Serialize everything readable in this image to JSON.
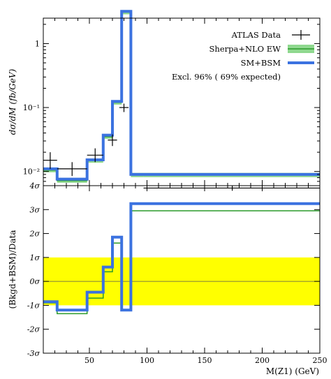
{
  "chart_data": [
    {
      "type": "line",
      "panel": "main",
      "ylabel": "dσ/dM (fb/GeV)",
      "yscale": "log",
      "xlim": [
        10,
        250
      ],
      "ylim": [
        0.006,
        2.5
      ],
      "y_ticks": [
        {
          "value": 0.01,
          "label": "10⁻²"
        },
        {
          "value": 0.1,
          "label": "10⁻¹"
        },
        {
          "value": 1,
          "label": "1"
        }
      ],
      "legend_position": "top-right",
      "series": [
        {
          "name": "ATLAS Data",
          "style": "data-points",
          "color": "#000000",
          "points": [
            {
              "x": 16,
              "y": 0.015,
              "xlo": 10,
              "xhi": 22,
              "ylo": 0.011,
              "yhi": 0.02
            },
            {
              "x": 35,
              "y": 0.011,
              "xlo": 22,
              "xhi": 48,
              "ylo": 0.0085,
              "yhi": 0.014
            },
            {
              "x": 55,
              "y": 0.018,
              "xlo": 48,
              "xhi": 62,
              "ylo": 0.014,
              "yhi": 0.023
            },
            {
              "x": 70,
              "y": 0.031,
              "xlo": 66,
              "xhi": 74,
              "ylo": 0.025,
              "yhi": 0.038
            },
            {
              "x": 80,
              "y": 0.1,
              "xlo": 76,
              "xhi": 84,
              "ylo": 0.085,
              "yhi": 0.115
            },
            {
              "x": 174,
              "y": 0.0055,
              "xlo": 97,
              "xhi": 250,
              "ylo": 0.005,
              "yhi": 0.006
            }
          ]
        },
        {
          "name": "Sherpa+NLO EW",
          "style": "histogram",
          "color": "#2a9a2a",
          "band_color": "#8fd88f",
          "edges": [
            10,
            22,
            48,
            62,
            70,
            78,
            86,
            97,
            250
          ],
          "values": [
            0.0105,
            0.0072,
            0.0148,
            0.035,
            0.12,
            3.1,
            0.0088,
            0.0088
          ]
        },
        {
          "name": "SM+BSM",
          "style": "histogram",
          "color": "#3b72e0",
          "edges": [
            10,
            22,
            48,
            62,
            70,
            78,
            86,
            97,
            250
          ],
          "values": [
            0.011,
            0.0076,
            0.0152,
            0.037,
            0.125,
            3.2,
            0.009,
            0.009
          ]
        }
      ],
      "annotations": [
        "Excl. 96% ( 69% expected)"
      ]
    },
    {
      "type": "line",
      "panel": "ratio",
      "xlabel": "M(Z1) (GeV)",
      "ylabel": "(Bkgd+BSM)/Data",
      "xlim": [
        10,
        250
      ],
      "ylim": [
        -3,
        4
      ],
      "x_ticks": [
        50,
        100,
        150,
        200,
        250
      ],
      "y_ticks": [
        {
          "value": 4,
          "label": "4σ"
        },
        {
          "value": 3,
          "label": "3σ"
        },
        {
          "value": 2,
          "label": "2σ"
        },
        {
          "value": 1,
          "label": "1σ"
        },
        {
          "value": 0,
          "label": "0σ"
        },
        {
          "value": -1,
          "label": "-1σ"
        },
        {
          "value": -2,
          "label": "-2σ"
        },
        {
          "value": -3,
          "label": "-3σ"
        }
      ],
      "band": {
        "from": -1,
        "to": 1,
        "color": "#ffff00"
      },
      "series": [
        {
          "name": "Sherpa+NLO EW",
          "color": "#2a9a2a",
          "edges": [
            10,
            22,
            48,
            62,
            70,
            78,
            86,
            97,
            250
          ],
          "values": [
            -0.9,
            -1.35,
            -0.7,
            0.4,
            1.6,
            -1.2,
            2.95,
            2.95
          ]
        },
        {
          "name": "SM+BSM",
          "color": "#3b72e0",
          "edges": [
            10,
            22,
            48,
            62,
            70,
            78,
            86,
            97,
            250
          ],
          "values": [
            -0.85,
            -1.2,
            -0.45,
            0.6,
            1.85,
            -1.2,
            3.25,
            3.25
          ]
        }
      ]
    }
  ],
  "colors": {
    "data": "#000000",
    "sherpa": "#2a9a2a",
    "sherpa_band": "#8fd88f",
    "smbsm": "#3b72e0",
    "sigma_band": "#ffff00"
  }
}
